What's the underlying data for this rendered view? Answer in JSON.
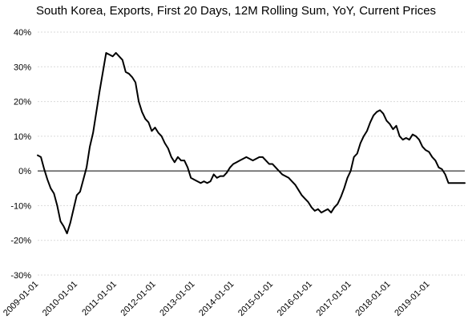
{
  "chart_data": {
    "type": "line",
    "title": "South Korea, Exports, First 20 Days, 12M Rolling Sum, YoY, Current Prices",
    "xlabel": "",
    "ylabel": "",
    "ylim": [
      -30,
      40
    ],
    "ytick_values": [
      -30,
      -20,
      -10,
      0,
      10,
      20,
      30,
      40
    ],
    "ytick_labels": [
      "-30%",
      "-20%",
      "-10%",
      "0%",
      "10%",
      "20%",
      "30%",
      "40%"
    ],
    "xtick_labels": [
      "2009-01-01",
      "2010-01-01",
      "2011-01-01",
      "2012-01-01",
      "2013-01-01",
      "2014-01-01",
      "2015-01-01",
      "2016-01-01",
      "2017-01-01",
      "2018-01-01",
      "2019-01-01"
    ],
    "xlim": [
      "2009-01-01",
      "2019-12-01"
    ],
    "grid": "horizontal",
    "legend": "none",
    "line_color": "#000000",
    "series": [
      {
        "x": [
          "2009-01",
          "2009-02",
          "2009-03",
          "2009-04",
          "2009-05",
          "2009-06",
          "2009-07",
          "2009-08",
          "2009-09",
          "2009-10",
          "2009-11",
          "2009-12",
          "2010-01",
          "2010-02",
          "2010-03",
          "2010-04",
          "2010-05",
          "2010-06",
          "2010-07",
          "2010-08",
          "2010-09",
          "2010-10",
          "2010-11",
          "2010-12",
          "2011-01",
          "2011-02",
          "2011-03",
          "2011-04",
          "2011-05",
          "2011-06",
          "2011-07",
          "2011-08",
          "2011-09",
          "2011-10",
          "2011-11",
          "2011-12",
          "2012-01",
          "2012-02",
          "2012-03",
          "2012-04",
          "2012-05",
          "2012-06",
          "2012-07",
          "2012-08",
          "2012-09",
          "2012-10",
          "2012-11",
          "2012-12",
          "2013-01",
          "2013-02",
          "2013-03",
          "2013-04",
          "2013-05",
          "2013-06",
          "2013-07",
          "2013-08",
          "2013-09",
          "2013-10",
          "2013-11",
          "2013-12",
          "2014-01",
          "2014-02",
          "2014-03",
          "2014-04",
          "2014-05",
          "2014-06",
          "2014-07",
          "2014-08",
          "2014-09",
          "2014-10",
          "2014-11",
          "2014-12",
          "2015-01",
          "2015-02",
          "2015-03",
          "2015-04",
          "2015-05",
          "2015-06",
          "2015-07",
          "2015-08",
          "2015-09",
          "2015-10",
          "2015-11",
          "2015-12",
          "2016-01",
          "2016-02",
          "2016-03",
          "2016-04",
          "2016-05",
          "2016-06",
          "2016-07",
          "2016-08",
          "2016-09",
          "2016-10",
          "2016-11",
          "2016-12",
          "2017-01",
          "2017-02",
          "2017-03",
          "2017-04",
          "2017-05",
          "2017-06",
          "2017-07",
          "2017-08",
          "2017-09",
          "2017-10",
          "2017-11",
          "2017-12",
          "2018-01",
          "2018-02",
          "2018-03",
          "2018-04",
          "2018-05",
          "2018-06",
          "2018-07",
          "2018-08",
          "2018-09",
          "2018-10",
          "2018-11",
          "2018-12",
          "2019-01",
          "2019-02",
          "2019-03",
          "2019-04",
          "2019-05",
          "2019-06",
          "2019-07",
          "2019-08",
          "2019-09",
          "2019-10",
          "2019-11",
          "2019-12"
        ],
        "values": [
          4.5,
          4.0,
          0.5,
          -2.5,
          -5.0,
          -6.5,
          -10.0,
          -14.5,
          -16.0,
          -18.0,
          -15.0,
          -11.0,
          -7.0,
          -6.0,
          -2.5,
          1.0,
          7.0,
          11.0,
          17.0,
          23.0,
          28.5,
          34.0,
          33.5,
          33.0,
          34.0,
          33.0,
          32.0,
          28.5,
          28.0,
          27.0,
          25.5,
          20.0,
          17.0,
          15.0,
          14.0,
          11.5,
          12.5,
          11.0,
          10.0,
          8.0,
          6.5,
          4.0,
          2.5,
          4.0,
          3.0,
          3.0,
          1.0,
          -2.0,
          -2.5,
          -3.0,
          -3.5,
          -3.0,
          -3.5,
          -3.0,
          -1.0,
          -2.0,
          -1.5,
          -1.5,
          -0.5,
          1.0,
          2.0,
          2.5,
          3.0,
          3.5,
          4.0,
          3.5,
          3.0,
          3.5,
          4.0,
          4.0,
          3.0,
          2.0,
          2.0,
          1.0,
          0.0,
          -1.0,
          -1.5,
          -2.0,
          -3.0,
          -4.0,
          -5.5,
          -7.0,
          -8.0,
          -9.0,
          -10.5,
          -11.5,
          -11.0,
          -12.0,
          -11.5,
          -11.0,
          -12.0,
          -10.5,
          -9.5,
          -7.5,
          -5.0,
          -2.0,
          0.0,
          4.0,
          5.0,
          8.0,
          10.0,
          11.5,
          14.0,
          16.0,
          17.0,
          17.5,
          16.5,
          14.5,
          13.5,
          12.0,
          13.0,
          10.0,
          9.0,
          9.5,
          9.0,
          10.5,
          10.0,
          9.0,
          7.0,
          6.0,
          5.5,
          4.0,
          3.0,
          1.0,
          0.5,
          -1.0,
          -3.5,
          -3.5,
          -3.5,
          -3.5,
          -3.5,
          -3.5
        ]
      }
    ]
  }
}
